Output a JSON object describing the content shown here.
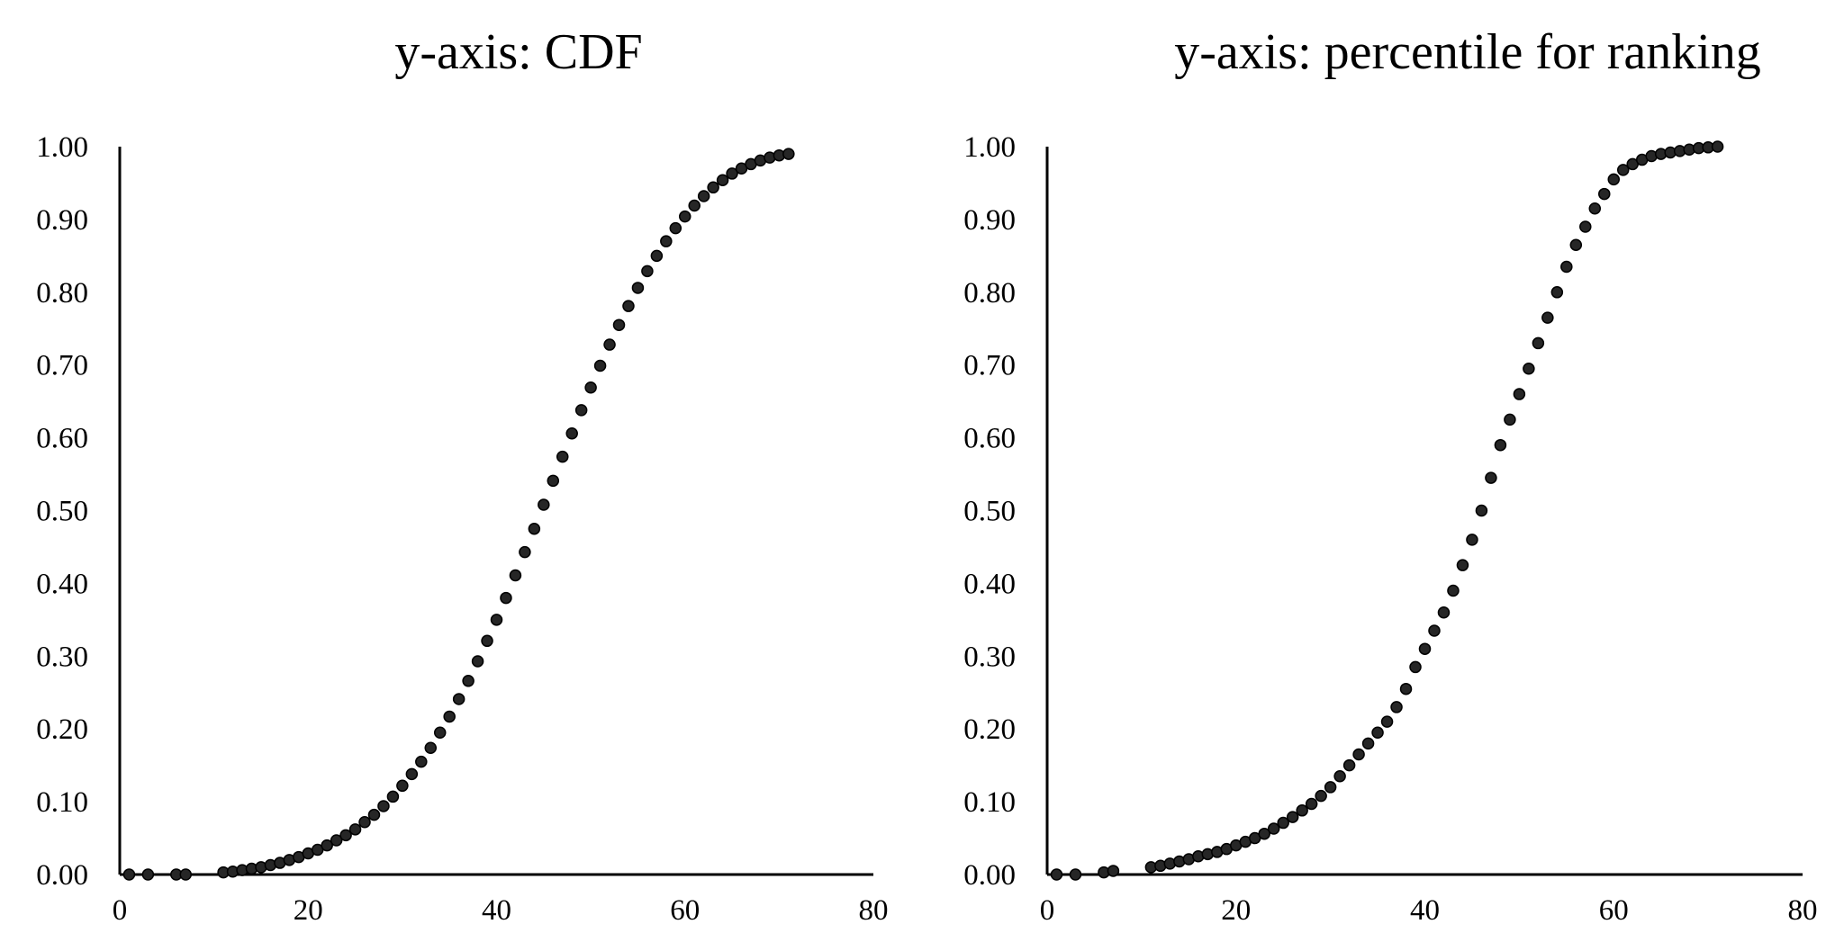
{
  "chart_data": [
    {
      "type": "scatter",
      "title": "y-axis: CDF",
      "xlabel": "",
      "ylabel": "",
      "xlim": [
        0,
        80
      ],
      "ylim": [
        0,
        1
      ],
      "x_ticks": [
        "0",
        "20",
        "40",
        "60",
        "80"
      ],
      "y_ticks": [
        "0.00",
        "0.10",
        "0.20",
        "0.30",
        "0.40",
        "0.50",
        "0.60",
        "0.70",
        "0.80",
        "0.90",
        "1.00"
      ],
      "grid": false,
      "legend": "none",
      "marker_color": "#262626",
      "series": [
        {
          "points": [
            [
              1,
              0.0
            ],
            [
              3,
              0.0
            ],
            [
              6,
              0.0
            ],
            [
              7,
              0.0
            ],
            [
              11,
              0.003
            ],
            [
              12,
              0.004
            ],
            [
              13,
              0.006
            ],
            [
              14,
              0.008
            ],
            [
              15,
              0.01
            ],
            [
              16,
              0.013
            ],
            [
              17,
              0.016
            ],
            [
              18,
              0.02
            ],
            [
              19,
              0.024
            ],
            [
              20,
              0.029
            ],
            [
              21,
              0.034
            ],
            [
              22,
              0.04
            ],
            [
              23,
              0.047
            ],
            [
              24,
              0.054
            ],
            [
              25,
              0.062
            ],
            [
              26,
              0.072
            ],
            [
              27,
              0.082
            ],
            [
              28,
              0.094
            ],
            [
              29,
              0.107
            ],
            [
              30,
              0.122
            ],
            [
              31,
              0.138
            ],
            [
              32,
              0.155
            ],
            [
              33,
              0.174
            ],
            [
              34,
              0.195
            ],
            [
              35,
              0.217
            ],
            [
              36,
              0.241
            ],
            [
              37,
              0.266
            ],
            [
              38,
              0.293
            ],
            [
              39,
              0.321
            ],
            [
              40,
              0.35
            ],
            [
              41,
              0.38
            ],
            [
              42,
              0.411
            ],
            [
              43,
              0.443
            ],
            [
              44,
              0.475
            ],
            [
              45,
              0.508
            ],
            [
              46,
              0.541
            ],
            [
              47,
              0.574
            ],
            [
              48,
              0.606
            ],
            [
              49,
              0.638
            ],
            [
              50,
              0.669
            ],
            [
              51,
              0.699
            ],
            [
              52,
              0.728
            ],
            [
              53,
              0.755
            ],
            [
              54,
              0.781
            ],
            [
              55,
              0.806
            ],
            [
              56,
              0.829
            ],
            [
              57,
              0.85
            ],
            [
              58,
              0.87
            ],
            [
              59,
              0.888
            ],
            [
              60,
              0.904
            ],
            [
              61,
              0.919
            ],
            [
              62,
              0.932
            ],
            [
              63,
              0.944
            ],
            [
              64,
              0.954
            ],
            [
              65,
              0.963
            ],
            [
              66,
              0.97
            ],
            [
              67,
              0.976
            ],
            [
              68,
              0.981
            ],
            [
              69,
              0.985
            ],
            [
              70,
              0.988
            ],
            [
              71,
              0.99
            ]
          ]
        }
      ]
    },
    {
      "type": "scatter",
      "title": "y-axis: percentile for ranking",
      "xlabel": "",
      "ylabel": "",
      "xlim": [
        0,
        80
      ],
      "ylim": [
        0,
        1
      ],
      "x_ticks": [
        "0",
        "20",
        "40",
        "60",
        "80"
      ],
      "y_ticks": [
        "0.00",
        "0.10",
        "0.20",
        "0.30",
        "0.40",
        "0.50",
        "0.60",
        "0.70",
        "0.80",
        "0.90",
        "1.00"
      ],
      "grid": false,
      "legend": "none",
      "marker_color": "#262626",
      "series": [
        {
          "points": [
            [
              1,
              0.0
            ],
            [
              3,
              0.0
            ],
            [
              6,
              0.003
            ],
            [
              7,
              0.005
            ],
            [
              11,
              0.01
            ],
            [
              12,
              0.012
            ],
            [
              13,
              0.015
            ],
            [
              14,
              0.018
            ],
            [
              15,
              0.021
            ],
            [
              16,
              0.025
            ],
            [
              17,
              0.028
            ],
            [
              18,
              0.031
            ],
            [
              19,
              0.035
            ],
            [
              20,
              0.04
            ],
            [
              21,
              0.045
            ],
            [
              22,
              0.05
            ],
            [
              23,
              0.056
            ],
            [
              24,
              0.063
            ],
            [
              25,
              0.071
            ],
            [
              26,
              0.079
            ],
            [
              27,
              0.088
            ],
            [
              28,
              0.097
            ],
            [
              29,
              0.108
            ],
            [
              30,
              0.12
            ],
            [
              31,
              0.135
            ],
            [
              32,
              0.15
            ],
            [
              33,
              0.165
            ],
            [
              34,
              0.18
            ],
            [
              35,
              0.195
            ],
            [
              36,
              0.21
            ],
            [
              37,
              0.23
            ],
            [
              38,
              0.255
            ],
            [
              39,
              0.285
            ],
            [
              40,
              0.31
            ],
            [
              41,
              0.335
            ],
            [
              42,
              0.36
            ],
            [
              43,
              0.39
            ],
            [
              44,
              0.425
            ],
            [
              45,
              0.46
            ],
            [
              46,
              0.5
            ],
            [
              47,
              0.545
            ],
            [
              48,
              0.59
            ],
            [
              49,
              0.625
            ],
            [
              50,
              0.66
            ],
            [
              51,
              0.695
            ],
            [
              52,
              0.73
            ],
            [
              53,
              0.765
            ],
            [
              54,
              0.8
            ],
            [
              55,
              0.835
            ],
            [
              56,
              0.865
            ],
            [
              57,
              0.89
            ],
            [
              58,
              0.915
            ],
            [
              59,
              0.935
            ],
            [
              60,
              0.955
            ],
            [
              61,
              0.968
            ],
            [
              62,
              0.976
            ],
            [
              63,
              0.982
            ],
            [
              64,
              0.987
            ],
            [
              65,
              0.99
            ],
            [
              66,
              0.992
            ],
            [
              67,
              0.994
            ],
            [
              68,
              0.996
            ],
            [
              69,
              0.998
            ],
            [
              70,
              0.999
            ],
            [
              71,
              1.0
            ]
          ]
        }
      ]
    }
  ]
}
